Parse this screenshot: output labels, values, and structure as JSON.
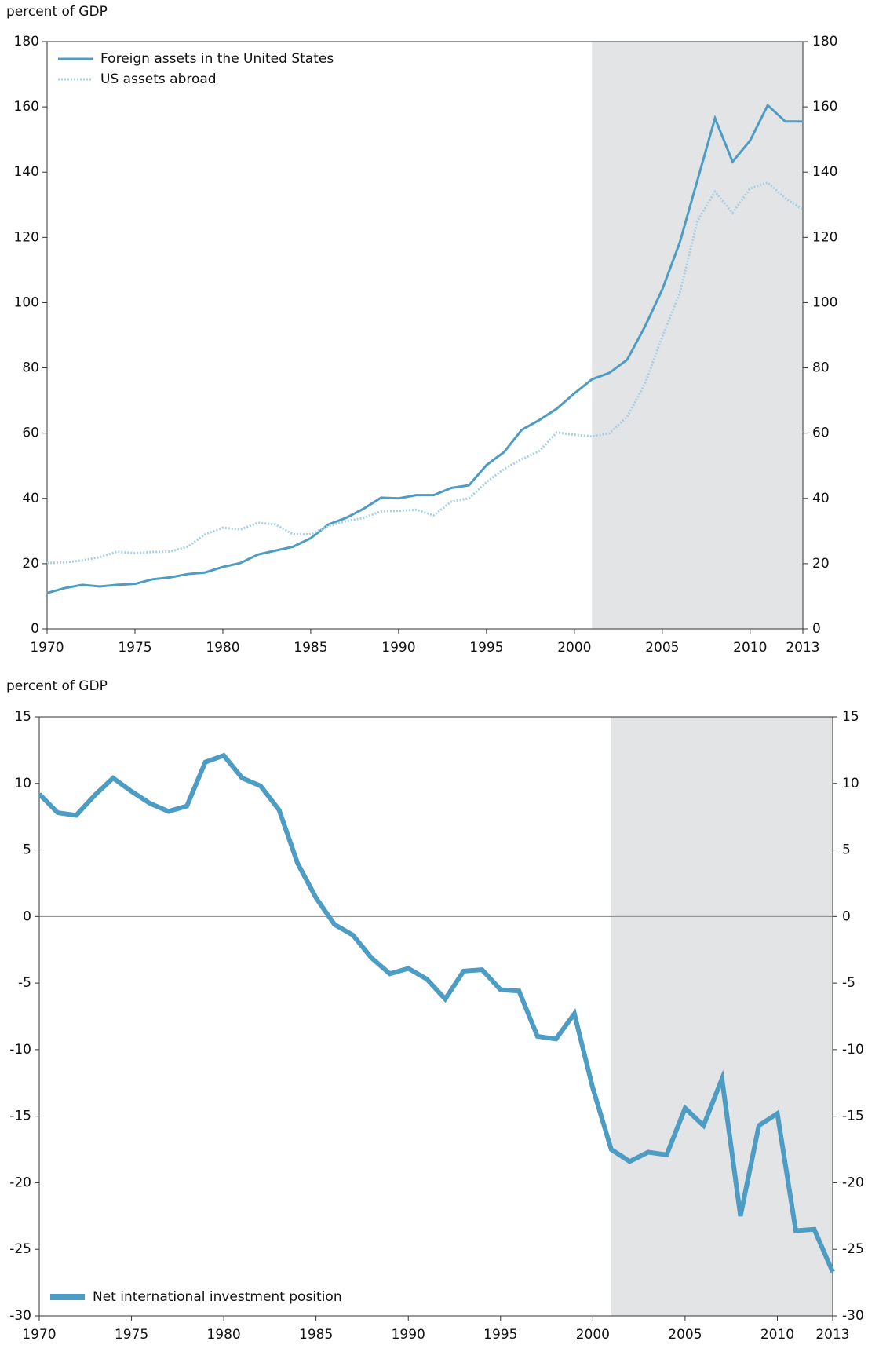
{
  "chart_data": [
    {
      "type": "line",
      "y_label": "percent of GDP",
      "x": [
        1970,
        1971,
        1972,
        1973,
        1974,
        1975,
        1976,
        1977,
        1978,
        1979,
        1980,
        1981,
        1982,
        1983,
        1984,
        1985,
        1986,
        1987,
        1988,
        1989,
        1990,
        1991,
        1992,
        1993,
        1994,
        1995,
        1996,
        1997,
        1998,
        1999,
        2000,
        2001,
        2002,
        2003,
        2004,
        2005,
        2006,
        2007,
        2008,
        2009,
        2010,
        2011,
        2012,
        2013
      ],
      "xlim": [
        1970,
        2013
      ],
      "xticks": [
        1970,
        1975,
        1980,
        1985,
        1990,
        1995,
        2000,
        2005,
        2010,
        2013
      ],
      "ylim": [
        0,
        180
      ],
      "yticks": [
        0,
        20,
        40,
        60,
        80,
        100,
        120,
        140,
        160,
        180
      ],
      "shaded_x": [
        2001,
        2013
      ],
      "legend": "upper left",
      "series": [
        {
          "name": "Foreign assets in the United States",
          "color": "#4d9cc3",
          "style": "solid",
          "values": [
            11,
            12.5,
            13.5,
            13,
            13.5,
            13.8,
            15.2,
            15.8,
            16.8,
            17.3,
            19,
            20.2,
            22.8,
            24,
            25.2,
            27.8,
            32,
            34,
            36.8,
            40.2,
            40,
            41,
            41,
            43.2,
            44,
            50.2,
            54.2,
            61,
            64,
            67.5,
            72.2,
            76.5,
            78.5,
            82.5,
            92.5,
            104,
            118.5,
            137.5,
            156.5,
            143.2,
            149.7,
            160.5,
            155.5,
            155.5
          ]
        },
        {
          "name": "US assets abroad",
          "color": "#a9d0e3",
          "style": "dotted",
          "values": [
            20.2,
            20.4,
            21,
            22,
            23.7,
            23.2,
            23.6,
            23.7,
            25.2,
            29,
            31,
            30.5,
            32.5,
            32,
            29,
            29,
            31.5,
            33,
            34,
            36,
            36.2,
            36.5,
            34.8,
            39,
            40,
            45,
            49,
            52,
            54.5,
            60.2,
            59.5,
            59,
            60,
            65,
            75,
            89.5,
            103,
            125,
            134,
            127.5,
            135,
            136.8,
            132,
            128.5
          ]
        }
      ]
    },
    {
      "type": "line",
      "y_label": "percent of GDP",
      "x": [
        1970,
        1971,
        1972,
        1973,
        1974,
        1975,
        1976,
        1977,
        1978,
        1979,
        1980,
        1981,
        1982,
        1983,
        1984,
        1985,
        1986,
        1987,
        1988,
        1989,
        1990,
        1991,
        1992,
        1993,
        1994,
        1995,
        1996,
        1997,
        1998,
        1999,
        2000,
        2001,
        2002,
        2003,
        2004,
        2005,
        2006,
        2007,
        2008,
        2009,
        2010,
        2011,
        2012,
        2013
      ],
      "xlim": [
        1970,
        2013
      ],
      "xticks": [
        1970,
        1975,
        1980,
        1985,
        1990,
        1995,
        2000,
        2005,
        2010,
        2013
      ],
      "ylim": [
        -30,
        15
      ],
      "yticks": [
        -30,
        -25,
        -20,
        -15,
        -10,
        -5,
        0,
        5,
        10,
        15
      ],
      "shaded_x": [
        2001,
        2013
      ],
      "legend": "lower left",
      "zero_line": true,
      "series": [
        {
          "name": "Net international investment position",
          "color": "#4d9cc3",
          "style": "thick",
          "values": [
            9.2,
            7.8,
            7.6,
            9.1,
            10.4,
            9.4,
            8.5,
            7.9,
            8.3,
            11.6,
            12.1,
            10.4,
            9.8,
            8,
            4,
            1.4,
            -0.6,
            -1.4,
            -3.1,
            -4.3,
            -3.9,
            -4.7,
            -6.2,
            -4.1,
            -4,
            -5.5,
            -5.6,
            -9,
            -9.2,
            -7.3,
            -12.9,
            -17.5,
            -18.4,
            -17.7,
            -17.9,
            -14.4,
            -15.7,
            -12.2,
            -22.5,
            -15.7,
            -14.8,
            -23.6,
            -23.5,
            -26.7
          ]
        }
      ]
    }
  ]
}
